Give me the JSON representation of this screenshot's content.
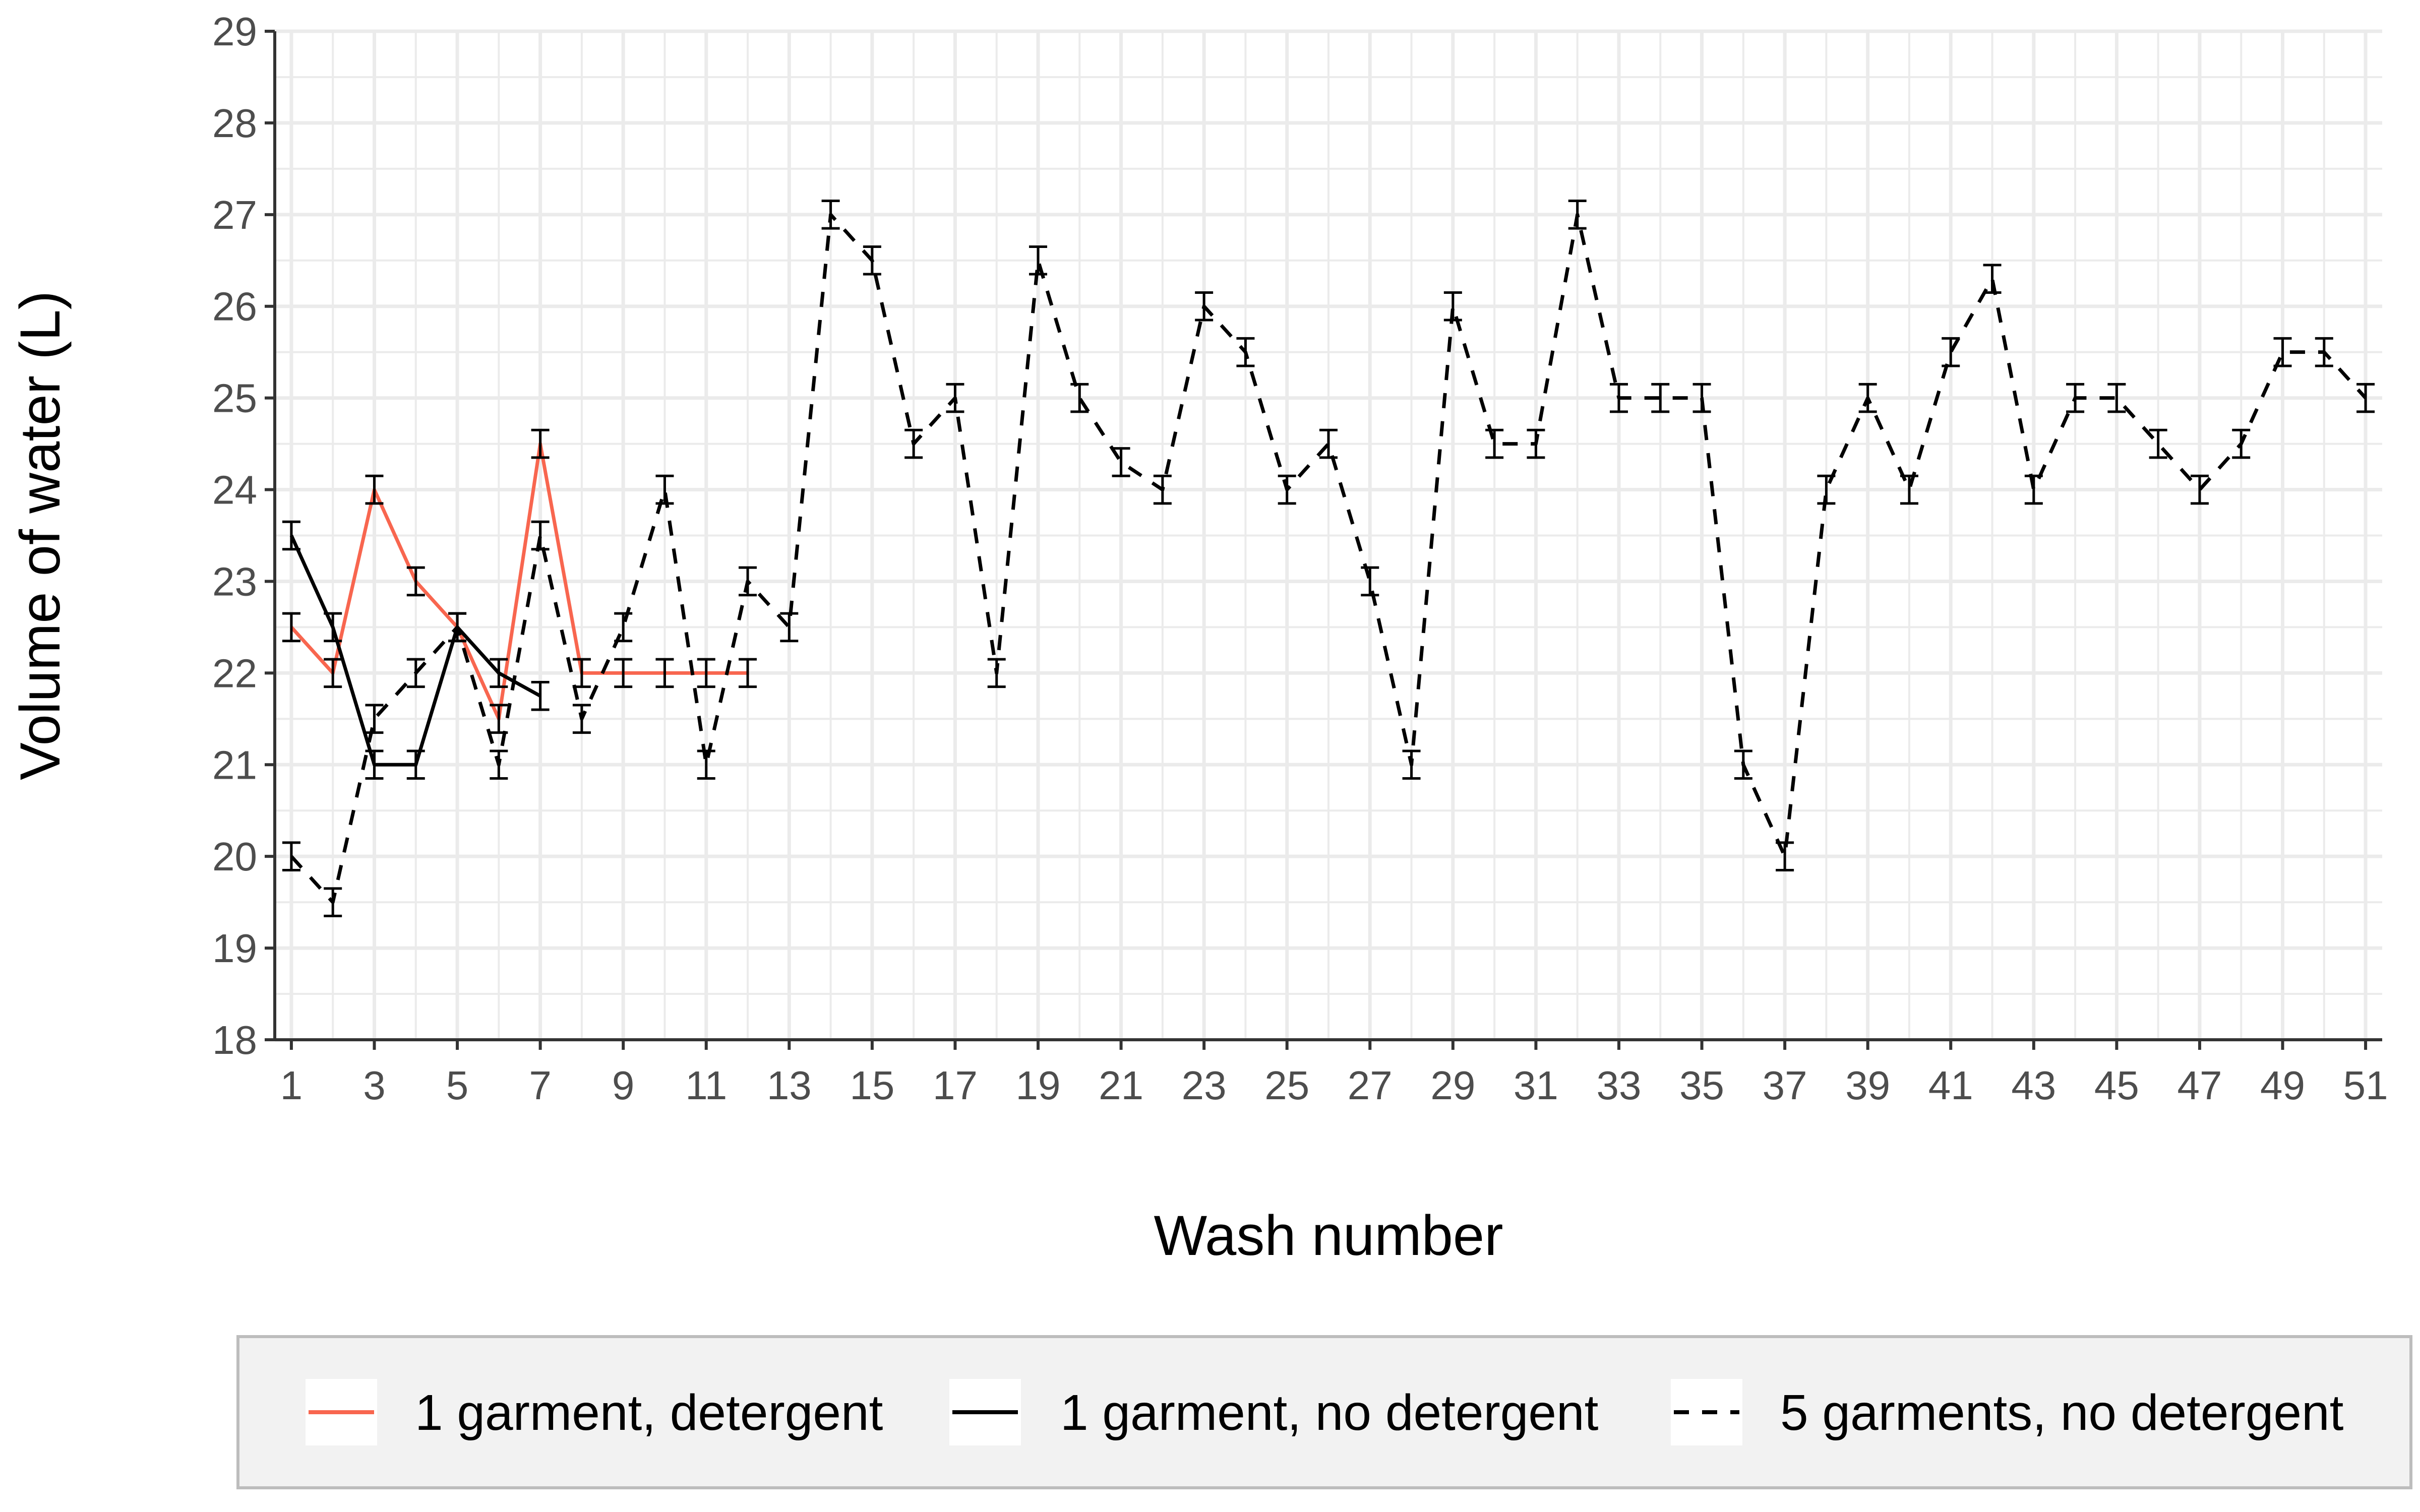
{
  "chart_data": {
    "type": "line",
    "title": "",
    "xlabel": "Wash number",
    "ylabel": "Volume of water (L)",
    "xlim": [
      0.6,
      51.4
    ],
    "ylim": [
      18,
      29
    ],
    "x_ticks": [
      1,
      3,
      5,
      7,
      9,
      11,
      13,
      15,
      17,
      19,
      21,
      23,
      25,
      27,
      29,
      31,
      33,
      35,
      37,
      39,
      41,
      43,
      45,
      47,
      49,
      51
    ],
    "y_ticks": [
      18,
      19,
      20,
      21,
      22,
      23,
      24,
      25,
      26,
      27,
      28,
      29
    ],
    "grid": true,
    "legend_position": "bottom",
    "error_half_width": 0.15,
    "series": [
      {
        "name": "1 garment, detergent",
        "color": "#F8664F",
        "dash": "solid",
        "x": [
          1,
          2,
          3,
          4,
          5,
          6,
          7,
          8,
          9,
          10,
          11,
          12
        ],
        "y": [
          22.5,
          22.0,
          24.0,
          23.0,
          22.5,
          21.5,
          24.5,
          22.0,
          22.0,
          22.0,
          22.0,
          22.0
        ]
      },
      {
        "name": "1 garment, no detergent",
        "color": "#000000",
        "dash": "solid",
        "x": [
          1,
          2,
          3,
          4,
          5,
          6,
          7
        ],
        "y": [
          23.5,
          22.5,
          21.0,
          21.0,
          22.5,
          22.0,
          21.75
        ]
      },
      {
        "name": "5 garments, no detergent",
        "color": "#000000",
        "dash": "dashed",
        "x": [
          1,
          2,
          3,
          4,
          5,
          6,
          7,
          8,
          9,
          10,
          11,
          12,
          13,
          14,
          15,
          16,
          17,
          18,
          19,
          20,
          21,
          22,
          23,
          24,
          25,
          26,
          27,
          28,
          29,
          30,
          31,
          32,
          33,
          34,
          35,
          36,
          37,
          38,
          39,
          40,
          41,
          42,
          43,
          44,
          45,
          46,
          47,
          48,
          49,
          50,
          51
        ],
        "y": [
          20.0,
          19.5,
          21.5,
          22.0,
          22.5,
          21.0,
          23.5,
          21.5,
          22.5,
          24.0,
          21.0,
          23.0,
          22.5,
          27.0,
          26.5,
          24.5,
          25.0,
          22.0,
          26.5,
          25.0,
          24.3,
          24.0,
          26.0,
          25.5,
          24.0,
          24.5,
          23.0,
          21.0,
          26.0,
          24.5,
          24.5,
          27.0,
          25.0,
          25.0,
          25.0,
          21.0,
          20.0,
          24.0,
          25.0,
          24.0,
          25.5,
          26.3,
          24.0,
          25.0,
          25.0,
          24.5,
          24.0,
          24.5,
          25.5,
          25.5,
          25.0
        ]
      }
    ]
  }
}
